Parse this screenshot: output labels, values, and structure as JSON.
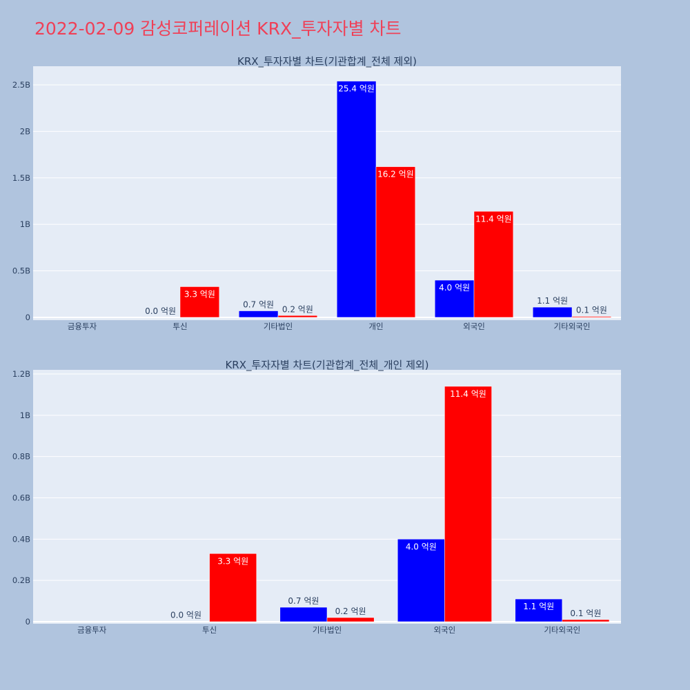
{
  "title": "2022-02-09 감성코퍼레이션 KRX_투자자별 차트",
  "colors": {
    "buy": "#0000ff",
    "sell": "#ff0000",
    "title": "#ef4057",
    "plot_bg": "#e5ecf6",
    "page_bg": "#b0c4de"
  },
  "chart_data": [
    {
      "type": "bar",
      "title": "KRX_투자자별 차트(기관합계_전체 제외)",
      "categories": [
        "금융투자",
        "투신",
        "기타법인",
        "개인",
        "외국인",
        "기타외국인"
      ],
      "series": [
        {
          "color": "#0000ff",
          "values": [
            0,
            0.001,
            0.07,
            2.54,
            0.4,
            0.11
          ],
          "labels": [
            "",
            "0.0 억원",
            "0.7 억원",
            "25.4 억원",
            "4.0 억원",
            "1.1 억원"
          ]
        },
        {
          "color": "#ff0000",
          "values": [
            0,
            0.33,
            0.02,
            1.62,
            1.14,
            0.01
          ],
          "labels": [
            "",
            "3.3 억원",
            "0.2 억원",
            "16.2 억원",
            "11.4 억원",
            "0.1 억원"
          ]
        }
      ],
      "ylim": [
        -0.03,
        2.7
      ],
      "yticks": [
        0,
        0.5,
        1,
        1.5,
        2,
        2.5
      ],
      "ytick_labels": [
        "0",
        "0.5B",
        "1B",
        "1.5B",
        "2B",
        "2.5B"
      ]
    },
    {
      "type": "bar",
      "title": "KRX_투자자별 차트(기관합계_전체_개인 제외)",
      "categories": [
        "금융투자",
        "투신",
        "기타법인",
        "외국인",
        "기타외국인"
      ],
      "series": [
        {
          "color": "#0000ff",
          "values": [
            0,
            0.001,
            0.07,
            0.4,
            0.11
          ],
          "labels": [
            "",
            "0.0 억원",
            "0.7 억원",
            "4.0 억원",
            "1.1 억원"
          ]
        },
        {
          "color": "#ff0000",
          "values": [
            0,
            0.33,
            0.02,
            1.14,
            0.01
          ],
          "labels": [
            "",
            "3.3 억원",
            "0.2 억원",
            "11.4 억원",
            "0.1 억원"
          ]
        }
      ],
      "ylim": [
        -0.01,
        1.22
      ],
      "yticks": [
        0,
        0.2,
        0.4,
        0.6,
        0.8,
        1,
        1.2
      ],
      "ytick_labels": [
        "0",
        "0.2B",
        "0.4B",
        "0.6B",
        "0.8B",
        "1B",
        "1.2B"
      ]
    }
  ]
}
